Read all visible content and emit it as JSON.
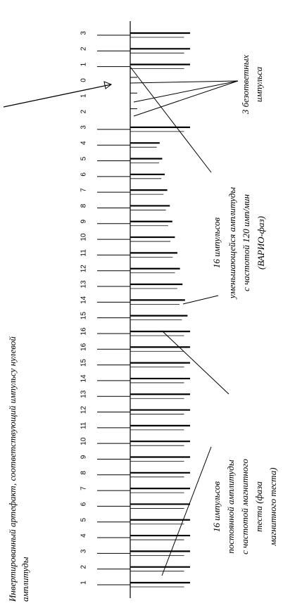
{
  "pulse_numbers": [
    "3",
    "2",
    "1",
    "0",
    "1",
    "2",
    "3",
    "4",
    "5",
    "6",
    "7",
    "8",
    "9",
    "10",
    "11",
    "12",
    "13",
    "14",
    "15",
    "16",
    "16",
    "15",
    "14",
    "13",
    "12",
    "11",
    "10",
    "9",
    "8",
    "7",
    "6",
    "5",
    "4",
    "3",
    "2",
    "1"
  ],
  "annotations": {
    "inverted_artifact": [
      "Инвертированный артефакт, соответствующий импульсу нулевой",
      "амплитуды"
    ],
    "vario_phase": [
      "16 импульсов",
      "уменьшающейся амплитуды",
      "с частотой 120 имп/мин",
      "(ВАРИО-фаз)"
    ],
    "magnet_phase": [
      "16 импульсов",
      "постоянной амплитуды",
      "с частотой магнитного",
      "теста (фаза",
      "магнитного теста)"
    ],
    "unanswered": [
      "3 безответных",
      "импульса"
    ]
  }
}
